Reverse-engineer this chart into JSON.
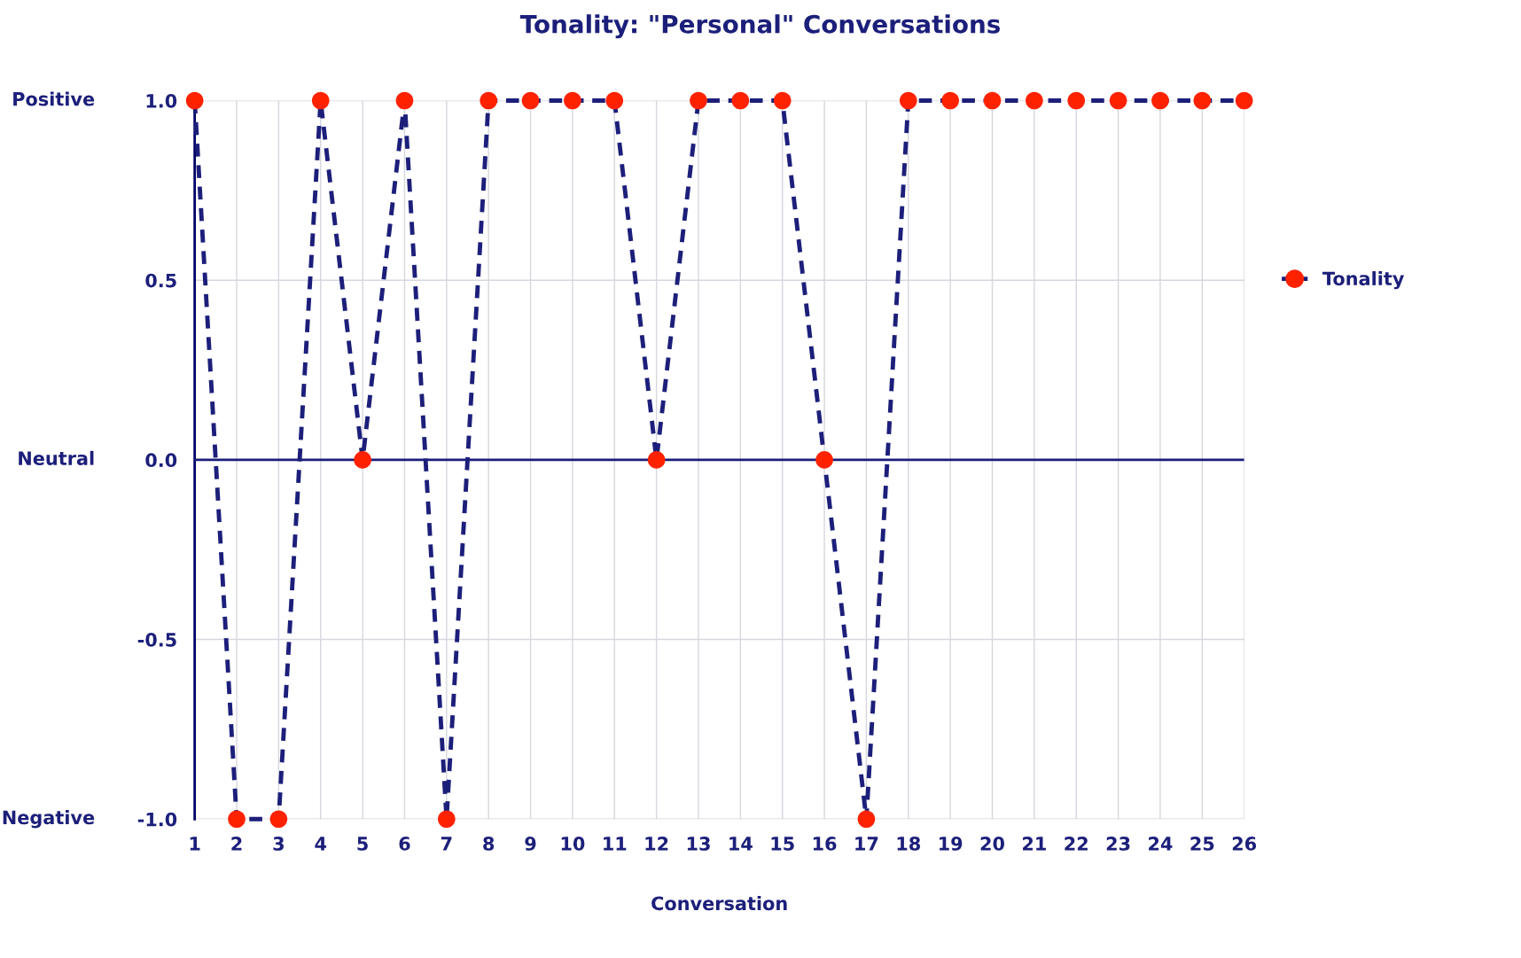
{
  "chart_data": {
    "type": "line",
    "title": "Tonality: \"Personal\" Conversations",
    "xlabel": "Conversation",
    "x": [
      1,
      2,
      3,
      4,
      5,
      6,
      7,
      8,
      9,
      10,
      11,
      12,
      13,
      14,
      15,
      16,
      17,
      18,
      19,
      20,
      21,
      22,
      23,
      24,
      25,
      26
    ],
    "series": [
      {
        "name": "Tonality",
        "color": "#1c1f7a",
        "colors": [
          "#ff2200",
          "#ff2200",
          "#ff2200",
          "#ff2200",
          "#ff2200",
          "#ff2200",
          "#ff2200",
          "#ff2200",
          "#ff2200",
          "#ff2200",
          "#ff2200",
          "#ff2200",
          "#ff2200",
          "#ff2200",
          "#ff2200",
          "#ff2200",
          "#ff2200",
          "#ff2200",
          "#ff2200",
          "#ff2200",
          "#ff2200",
          "#ff2200",
          "#ff2200",
          "#ff2200",
          "#ff2200",
          "#ff2200"
        ],
        "values": [
          1,
          -1,
          -1,
          1,
          0,
          1,
          -1,
          1,
          1,
          1,
          1,
          0,
          1,
          1,
          1,
          0,
          -1,
          1,
          1,
          1,
          1,
          1,
          1,
          1,
          1,
          1
        ]
      }
    ],
    "xlim": [
      1,
      26
    ],
    "xticks": [
      1,
      2,
      3,
      4,
      5,
      6,
      7,
      8,
      9,
      10,
      11,
      12,
      13,
      14,
      15,
      16,
      17,
      18,
      19,
      20,
      21,
      22,
      23,
      24,
      25,
      26
    ],
    "ylim": [
      -1,
      1
    ],
    "yticks": [
      {
        "value": -1,
        "label": "-1.0"
      },
      {
        "value": -0.5,
        "label": "-0.5"
      },
      {
        "value": 0,
        "label": "0.0"
      },
      {
        "value": 0.5,
        "label": "0.5"
      },
      {
        "value": 1,
        "label": "1.0"
      }
    ],
    "annotations": [
      "Positive",
      "Neutral",
      "Negative"
    ],
    "ref_lines": [
      {
        "axis": "y",
        "value": 0,
        "color": "#1c1f7a"
      }
    ],
    "grid": true,
    "legend": "right",
    "marker": "circle",
    "line_style": "dashed"
  }
}
